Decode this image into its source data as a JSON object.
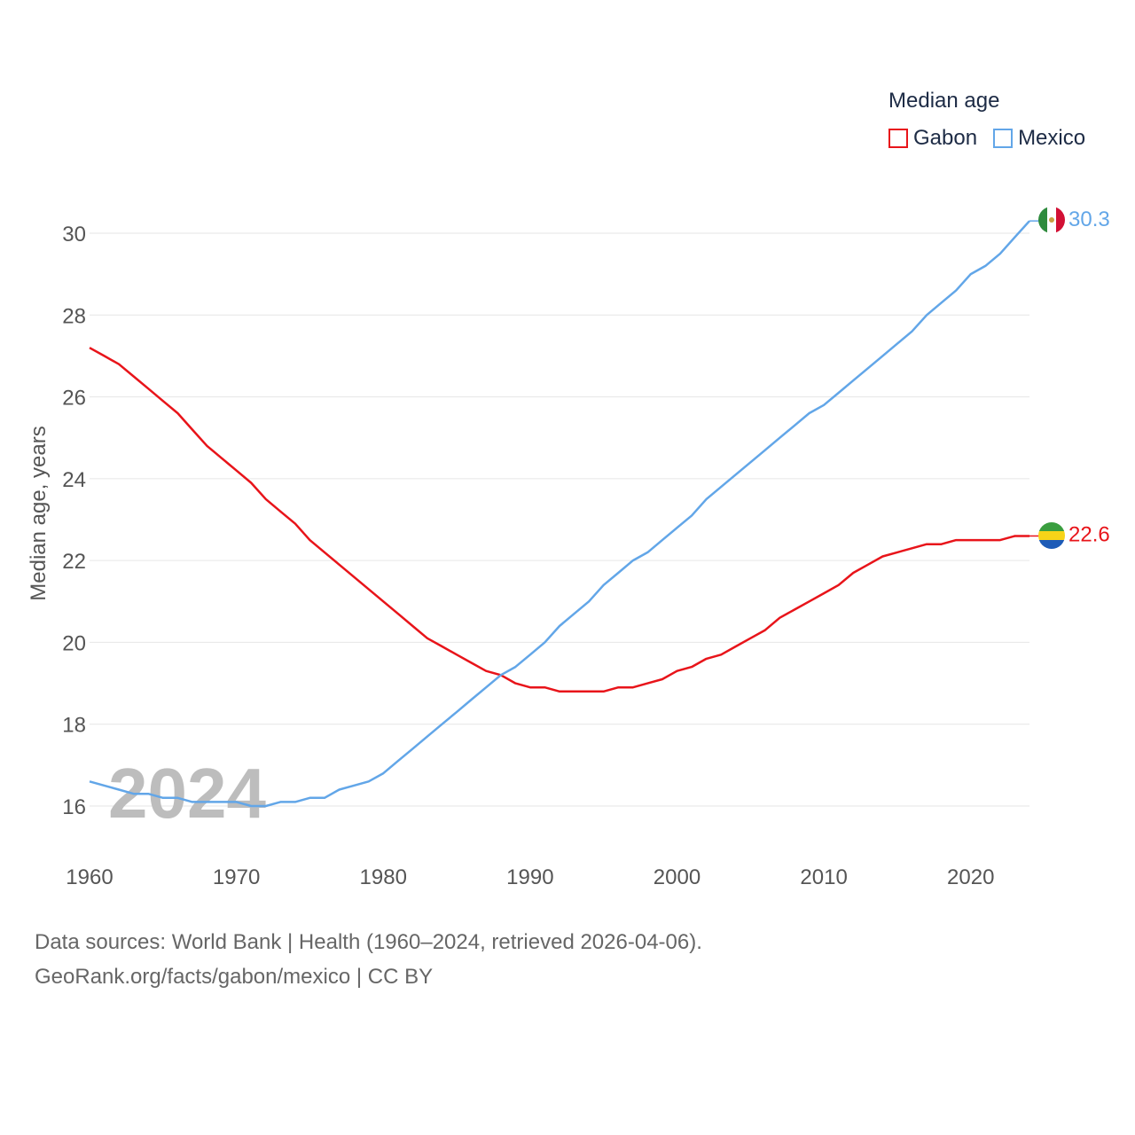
{
  "legend": {
    "title": "Median age",
    "items": [
      {
        "label": "Gabon",
        "color": "#e8141a"
      },
      {
        "label": "Mexico",
        "color": "#62a6e8"
      }
    ]
  },
  "source": {
    "line1": "Data sources: World Bank | Health (1960–2024, retrieved 2026-04-06).",
    "line2": "GeoRank.org/facts/gabon/mexico | CC BY"
  },
  "chart_data": {
    "type": "line",
    "ylabel": "Median age, years",
    "xlabel": "",
    "year_watermark": "2024",
    "xlim": [
      1960,
      2024
    ],
    "ylim": [
      15,
      31
    ],
    "x_ticks": [
      1960,
      1970,
      1980,
      1990,
      2000,
      2010,
      2020
    ],
    "y_ticks": [
      16,
      18,
      20,
      22,
      24,
      26,
      28,
      30
    ],
    "grid": true,
    "x": [
      1960,
      1961,
      1962,
      1963,
      1964,
      1965,
      1966,
      1967,
      1968,
      1969,
      1970,
      1971,
      1972,
      1973,
      1974,
      1975,
      1976,
      1977,
      1978,
      1979,
      1980,
      1981,
      1982,
      1983,
      1984,
      1985,
      1986,
      1987,
      1988,
      1989,
      1990,
      1991,
      1992,
      1993,
      1994,
      1995,
      1996,
      1997,
      1998,
      1999,
      2000,
      2001,
      2002,
      2003,
      2004,
      2005,
      2006,
      2007,
      2008,
      2009,
      2010,
      2011,
      2012,
      2013,
      2014,
      2015,
      2016,
      2017,
      2018,
      2019,
      2020,
      2021,
      2022,
      2023,
      2024
    ],
    "series": [
      {
        "name": "Gabon",
        "color": "#e8141a",
        "end_label": "22.6",
        "values": [
          27.2,
          27.0,
          26.8,
          26.5,
          26.2,
          25.9,
          25.6,
          25.2,
          24.8,
          24.5,
          24.2,
          23.9,
          23.5,
          23.2,
          22.9,
          22.5,
          22.2,
          21.9,
          21.6,
          21.3,
          21.0,
          20.7,
          20.4,
          20.1,
          19.9,
          19.7,
          19.5,
          19.3,
          19.2,
          19.0,
          18.9,
          18.9,
          18.8,
          18.8,
          18.8,
          18.8,
          18.9,
          18.9,
          19.0,
          19.1,
          19.3,
          19.4,
          19.6,
          19.7,
          19.9,
          20.1,
          20.3,
          20.6,
          20.8,
          21.0,
          21.2,
          21.4,
          21.7,
          21.9,
          22.1,
          22.2,
          22.3,
          22.4,
          22.4,
          22.5,
          22.5,
          22.5,
          22.5,
          22.6,
          22.6
        ]
      },
      {
        "name": "Mexico",
        "color": "#62a6e8",
        "end_label": "30.3",
        "values": [
          16.6,
          16.5,
          16.4,
          16.3,
          16.3,
          16.2,
          16.2,
          16.1,
          16.1,
          16.1,
          16.1,
          16.0,
          16.0,
          16.1,
          16.1,
          16.2,
          16.2,
          16.4,
          16.5,
          16.6,
          16.8,
          17.1,
          17.4,
          17.7,
          18.0,
          18.3,
          18.6,
          18.9,
          19.2,
          19.4,
          19.7,
          20.0,
          20.4,
          20.7,
          21.0,
          21.4,
          21.7,
          22.0,
          22.2,
          22.5,
          22.8,
          23.1,
          23.5,
          23.8,
          24.1,
          24.4,
          24.7,
          25.0,
          25.3,
          25.6,
          25.8,
          26.1,
          26.4,
          26.7,
          27.0,
          27.3,
          27.6,
          28.0,
          28.3,
          28.6,
          29.0,
          29.2,
          29.5,
          29.9,
          30.3
        ]
      }
    ]
  }
}
